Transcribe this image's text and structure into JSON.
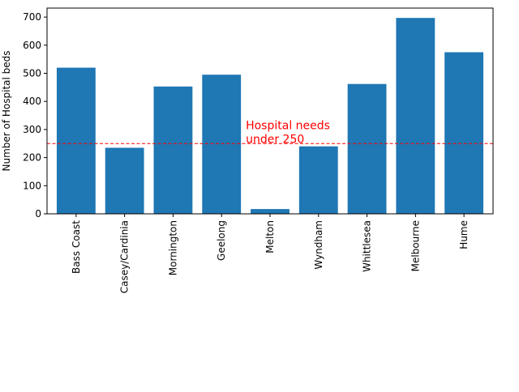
{
  "chart_data": {
    "type": "bar",
    "title": "",
    "xlabel": "",
    "ylabel": "Number of Hospital beds",
    "categories": [
      "Bass Coast",
      "Casey/Cardinia",
      "Mornington",
      "Geelong",
      "Melton",
      "Wyndham",
      "Whittlesea",
      "Melbourne",
      "Hume"
    ],
    "values": [
      520,
      235,
      453,
      495,
      17,
      240,
      462,
      697,
      575
    ],
    "ylim": [
      0,
      732
    ],
    "yticks": [
      0,
      100,
      200,
      300,
      400,
      500,
      600,
      700
    ],
    "bar_color": "#1f77b4",
    "grid": false,
    "reference_line": {
      "value": 250,
      "color": "#ff0000",
      "style": "dashed"
    },
    "annotation": {
      "lines": [
        "Hospital needs",
        "under 250"
      ],
      "color": "#ff0000"
    }
  }
}
